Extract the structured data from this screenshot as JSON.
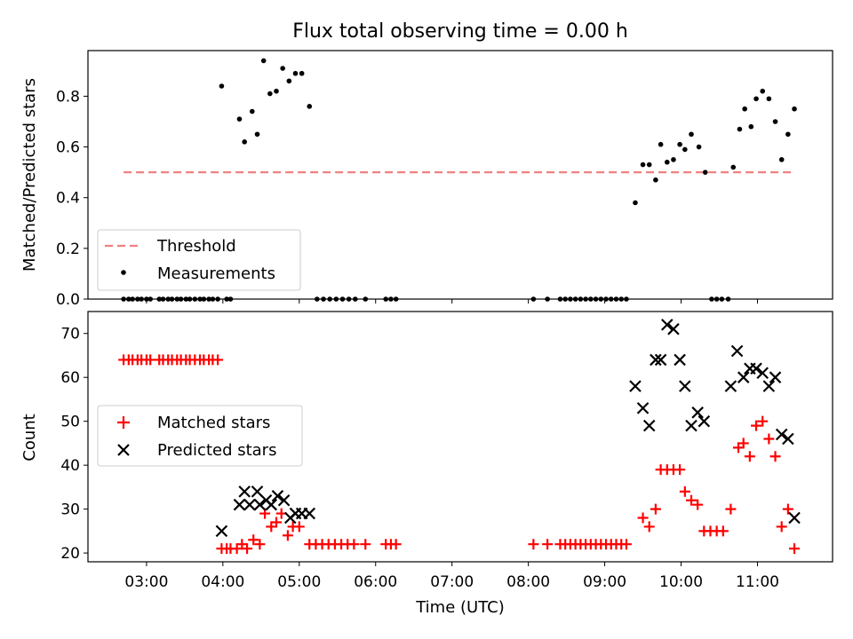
{
  "title": "Flux total observing time = 0.00 h",
  "chart_data": [
    {
      "type": "scatter",
      "panel": "top",
      "ylabel": "Matched/Predicted stars",
      "xlim": [
        "02:14",
        "11:59"
      ],
      "ylim": [
        0,
        0.98
      ],
      "yticks": [
        0.0,
        0.2,
        0.4,
        0.6,
        0.8
      ],
      "ytick_labels": [
        "0.0",
        "0.2",
        "0.4",
        "0.6",
        "0.8"
      ],
      "xticks": [
        "03:00",
        "04:00",
        "05:00",
        "06:00",
        "07:00",
        "08:00",
        "09:00",
        "10:00",
        "11:00"
      ],
      "grid": false,
      "legend_position": "lower-left",
      "legend": [
        "Threshold",
        "Measurements"
      ],
      "colors": {
        "threshold": "#f08080",
        "measurements": "#000000"
      },
      "threshold": {
        "name": "Threshold",
        "value": 0.5,
        "x_start": "02:42",
        "x_end": "11:29"
      },
      "series": [
        {
          "name": "Measurements",
          "points": [
            [
              "02:42",
              0
            ],
            [
              "02:46",
              0
            ],
            [
              "02:49",
              0
            ],
            [
              "02:53",
              0
            ],
            [
              "02:56",
              0
            ],
            [
              "03:00",
              0
            ],
            [
              "03:03",
              0
            ],
            [
              "03:10",
              0
            ],
            [
              "03:13",
              0
            ],
            [
              "03:17",
              0
            ],
            [
              "03:20",
              0
            ],
            [
              "03:24",
              0
            ],
            [
              "03:27",
              0
            ],
            [
              "03:31",
              0
            ],
            [
              "03:34",
              0
            ],
            [
              "03:38",
              0
            ],
            [
              "03:42",
              0
            ],
            [
              "03:45",
              0
            ],
            [
              "03:49",
              0
            ],
            [
              "03:52",
              0
            ],
            [
              "03:56",
              0
            ],
            [
              "03:59",
              0.84
            ],
            [
              "04:03",
              0
            ],
            [
              "04:06",
              0
            ],
            [
              "04:13",
              0.71
            ],
            [
              "04:17",
              0.62
            ],
            [
              "04:23",
              0.74
            ],
            [
              "04:27",
              0.65
            ],
            [
              "04:32",
              0.94
            ],
            [
              "04:37",
              0.81
            ],
            [
              "04:42",
              0.82
            ],
            [
              "04:47",
              0.91
            ],
            [
              "04:52",
              0.86
            ],
            [
              "04:57",
              0.89
            ],
            [
              "05:02",
              0.89
            ],
            [
              "05:08",
              0.76
            ],
            [
              "05:14",
              0
            ],
            [
              "05:19",
              0
            ],
            [
              "05:24",
              0
            ],
            [
              "05:29",
              0
            ],
            [
              "05:34",
              0
            ],
            [
              "05:39",
              0
            ],
            [
              "05:44",
              0
            ],
            [
              "05:52",
              0
            ],
            [
              "06:08",
              0
            ],
            [
              "06:12",
              0
            ],
            [
              "06:16",
              0
            ],
            [
              "08:04",
              0
            ],
            [
              "08:15",
              0
            ],
            [
              "08:25",
              0
            ],
            [
              "08:29",
              0
            ],
            [
              "08:33",
              0
            ],
            [
              "08:37",
              0
            ],
            [
              "08:41",
              0
            ],
            [
              "08:45",
              0
            ],
            [
              "08:49",
              0
            ],
            [
              "08:53",
              0
            ],
            [
              "08:57",
              0
            ],
            [
              "09:01",
              0
            ],
            [
              "09:05",
              0
            ],
            [
              "09:09",
              0
            ],
            [
              "09:13",
              0
            ],
            [
              "09:17",
              0
            ],
            [
              "09:24",
              0.38
            ],
            [
              "09:30",
              0.53
            ],
            [
              "09:35",
              0.53
            ],
            [
              "09:40",
              0.47
            ],
            [
              "09:44",
              0.61
            ],
            [
              "09:49",
              0.54
            ],
            [
              "09:54",
              0.55
            ],
            [
              "09:59",
              0.61
            ],
            [
              "10:03",
              0.59
            ],
            [
              "10:08",
              0.65
            ],
            [
              "10:14",
              0.6
            ],
            [
              "10:19",
              0.5
            ],
            [
              "10:24",
              0
            ],
            [
              "10:28",
              0
            ],
            [
              "10:32",
              0
            ],
            [
              "10:37",
              0
            ],
            [
              "10:41",
              0.52
            ],
            [
              "10:46",
              0.67
            ],
            [
              "10:50",
              0.75
            ],
            [
              "10:55",
              0.68
            ],
            [
              "10:59",
              0.79
            ],
            [
              "11:04",
              0.82
            ],
            [
              "11:09",
              0.79
            ],
            [
              "11:14",
              0.7
            ],
            [
              "11:19",
              0.55
            ],
            [
              "11:24",
              0.65
            ],
            [
              "11:29",
              0.75
            ]
          ]
        }
      ]
    },
    {
      "type": "scatter",
      "panel": "bottom",
      "xlabel": "Time (UTC)",
      "ylabel": "Count",
      "xlim": [
        "02:14",
        "11:59"
      ],
      "ylim": [
        18,
        75
      ],
      "yticks": [
        20,
        30,
        40,
        50,
        60,
        70
      ],
      "ytick_labels": [
        "20",
        "30",
        "40",
        "50",
        "60",
        "70"
      ],
      "xticks": [
        "03:00",
        "04:00",
        "05:00",
        "06:00",
        "07:00",
        "08:00",
        "09:00",
        "10:00",
        "11:00"
      ],
      "grid": false,
      "legend_position": "center-left",
      "legend": [
        "Matched stars",
        "Predicted stars"
      ],
      "colors": {
        "matched": "#ff0000",
        "predicted": "#000000"
      },
      "series": [
        {
          "name": "Matched stars",
          "marker": "+",
          "points": [
            [
              "02:42",
              64
            ],
            [
              "02:46",
              64
            ],
            [
              "02:49",
              64
            ],
            [
              "02:53",
              64
            ],
            [
              "02:56",
              64
            ],
            [
              "03:00",
              64
            ],
            [
              "03:03",
              64
            ],
            [
              "03:10",
              64
            ],
            [
              "03:13",
              64
            ],
            [
              "03:17",
              64
            ],
            [
              "03:20",
              64
            ],
            [
              "03:24",
              64
            ],
            [
              "03:27",
              64
            ],
            [
              "03:31",
              64
            ],
            [
              "03:34",
              64
            ],
            [
              "03:38",
              64
            ],
            [
              "03:42",
              64
            ],
            [
              "03:45",
              64
            ],
            [
              "03:49",
              64
            ],
            [
              "03:52",
              64
            ],
            [
              "03:56",
              64
            ],
            [
              "03:59",
              21
            ],
            [
              "04:03",
              21
            ],
            [
              "04:06",
              21
            ],
            [
              "04:11",
              21
            ],
            [
              "04:15",
              22
            ],
            [
              "04:19",
              21
            ],
            [
              "04:24",
              23
            ],
            [
              "04:29",
              22
            ],
            [
              "04:33",
              29
            ],
            [
              "04:38",
              26
            ],
            [
              "04:42",
              27
            ],
            [
              "04:46",
              29
            ],
            [
              "04:51",
              24
            ],
            [
              "04:55",
              26
            ],
            [
              "05:00",
              26
            ],
            [
              "05:08",
              22
            ],
            [
              "05:13",
              22
            ],
            [
              "05:18",
              22
            ],
            [
              "05:23",
              22
            ],
            [
              "05:28",
              22
            ],
            [
              "05:33",
              22
            ],
            [
              "05:38",
              22
            ],
            [
              "05:43",
              22
            ],
            [
              "05:52",
              22
            ],
            [
              "06:08",
              22
            ],
            [
              "06:12",
              22
            ],
            [
              "06:16",
              22
            ],
            [
              "08:04",
              22
            ],
            [
              "08:15",
              22
            ],
            [
              "08:25",
              22
            ],
            [
              "08:29",
              22
            ],
            [
              "08:33",
              22
            ],
            [
              "08:37",
              22
            ],
            [
              "08:41",
              22
            ],
            [
              "08:45",
              22
            ],
            [
              "08:49",
              22
            ],
            [
              "08:53",
              22
            ],
            [
              "08:57",
              22
            ],
            [
              "09:01",
              22
            ],
            [
              "09:05",
              22
            ],
            [
              "09:09",
              22
            ],
            [
              "09:13",
              22
            ],
            [
              "09:17",
              22
            ],
            [
              "09:30",
              28
            ],
            [
              "09:35",
              26
            ],
            [
              "09:40",
              30
            ],
            [
              "09:44",
              39
            ],
            [
              "09:49",
              39
            ],
            [
              "09:54",
              39
            ],
            [
              "09:59",
              39
            ],
            [
              "10:03",
              34
            ],
            [
              "10:08",
              32
            ],
            [
              "10:13",
              31
            ],
            [
              "10:18",
              25
            ],
            [
              "10:23",
              25
            ],
            [
              "10:28",
              25
            ],
            [
              "10:33",
              25
            ],
            [
              "10:39",
              30
            ],
            [
              "10:45",
              44
            ],
            [
              "10:49",
              45
            ],
            [
              "10:54",
              42
            ],
            [
              "10:59",
              49
            ],
            [
              "11:04",
              50
            ],
            [
              "11:09",
              46
            ],
            [
              "11:14",
              42
            ],
            [
              "11:19",
              26
            ],
            [
              "11:24",
              30
            ],
            [
              "11:29",
              21
            ]
          ]
        },
        {
          "name": "Predicted stars",
          "marker": "x",
          "points": [
            [
              "03:59",
              25
            ],
            [
              "04:13",
              31
            ],
            [
              "04:17",
              34
            ],
            [
              "04:21",
              31
            ],
            [
              "04:27",
              34
            ],
            [
              "04:29",
              31
            ],
            [
              "04:34",
              32
            ],
            [
              "04:38",
              31
            ],
            [
              "04:43",
              33
            ],
            [
              "04:48",
              32
            ],
            [
              "04:53",
              28
            ],
            [
              "04:57",
              29
            ],
            [
              "05:02",
              29
            ],
            [
              "05:08",
              29
            ],
            [
              "09:24",
              58
            ],
            [
              "09:30",
              53
            ],
            [
              "09:35",
              49
            ],
            [
              "09:40",
              64
            ],
            [
              "09:44",
              64
            ],
            [
              "09:49",
              72
            ],
            [
              "09:54",
              71
            ],
            [
              "09:59",
              64
            ],
            [
              "10:03",
              58
            ],
            [
              "10:08",
              49
            ],
            [
              "10:13",
              52
            ],
            [
              "10:18",
              50
            ],
            [
              "10:39",
              58
            ],
            [
              "10:44",
              66
            ],
            [
              "10:49",
              60
            ],
            [
              "10:54",
              62
            ],
            [
              "10:59",
              62
            ],
            [
              "11:04",
              61
            ],
            [
              "11:09",
              58
            ],
            [
              "11:14",
              60
            ],
            [
              "11:19",
              47
            ],
            [
              "11:24",
              46
            ],
            [
              "11:29",
              28
            ]
          ]
        }
      ]
    }
  ]
}
